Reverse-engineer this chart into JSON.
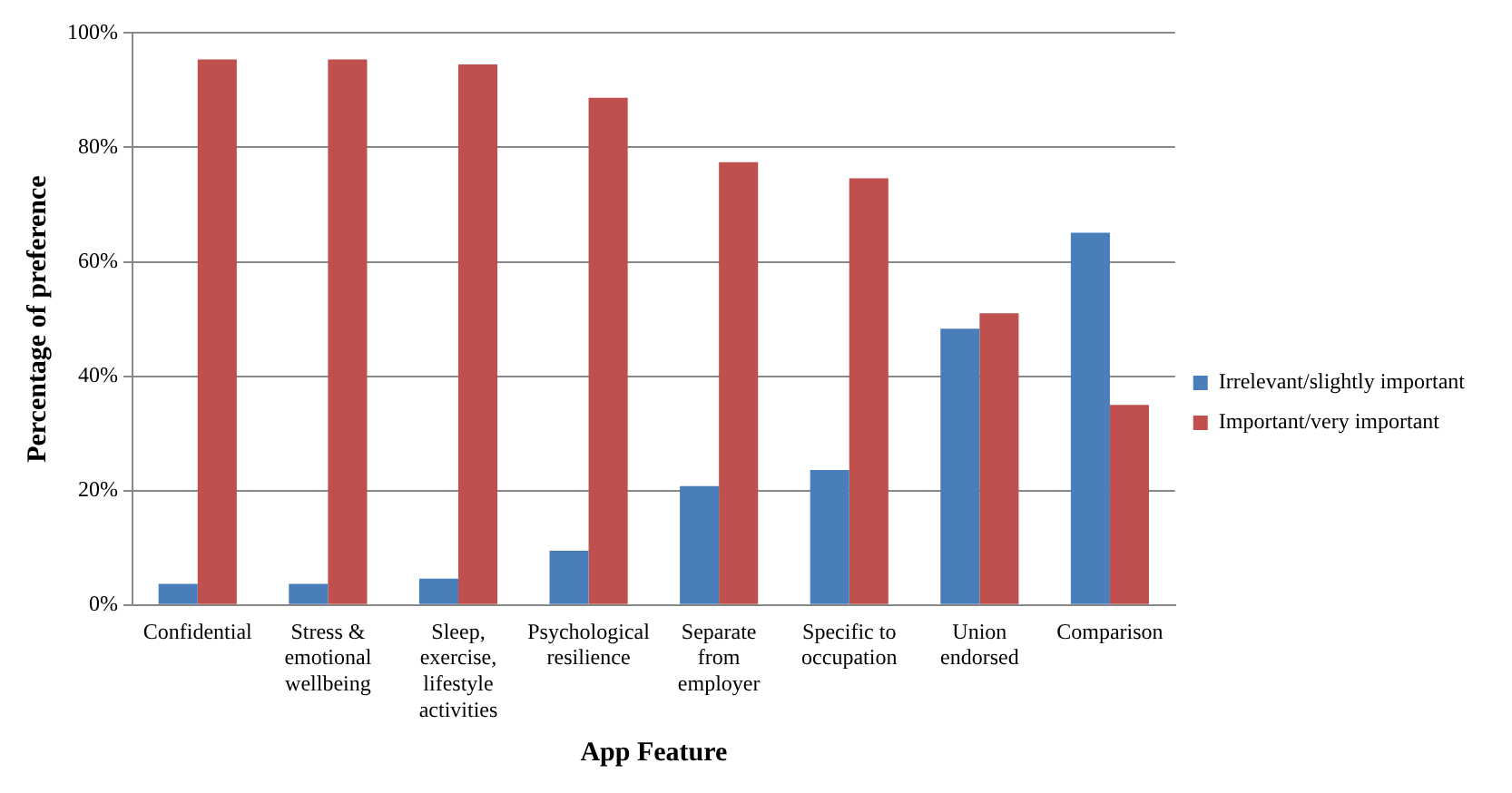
{
  "chart_data": {
    "type": "bar",
    "xlabel": "App Feature",
    "ylabel": "Percentage of preference",
    "categories": [
      "Confidential",
      "Stress & emotional wellbeing",
      "Sleep, exercise, lifestyle activities",
      "Psychological resilience",
      "Separate from employer",
      "Specific to occupation",
      "Union endorsed",
      "Comparison"
    ],
    "series": [
      {
        "name": "Irrelevant/slightly important",
        "color": "#4a7ebb",
        "values": [
          3.7,
          3.7,
          4.6,
          9.5,
          20.8,
          23.6,
          48.3,
          65.1
        ]
      },
      {
        "name": "Important/very important",
        "color": "#c0504d",
        "values": [
          95.4,
          95.4,
          94.5,
          88.7,
          77.4,
          74.6,
          51,
          35
        ]
      }
    ],
    "ylim": [
      0,
      100
    ],
    "yticks": [
      {
        "value": 0,
        "label": "0%"
      },
      {
        "value": 20,
        "label": "20%"
      },
      {
        "value": 40,
        "label": "40%"
      },
      {
        "value": 60,
        "label": "60%"
      },
      {
        "value": 80,
        "label": "80%"
      },
      {
        "value": 100,
        "label": "100%"
      }
    ],
    "grid": "y",
    "legend": "right"
  }
}
